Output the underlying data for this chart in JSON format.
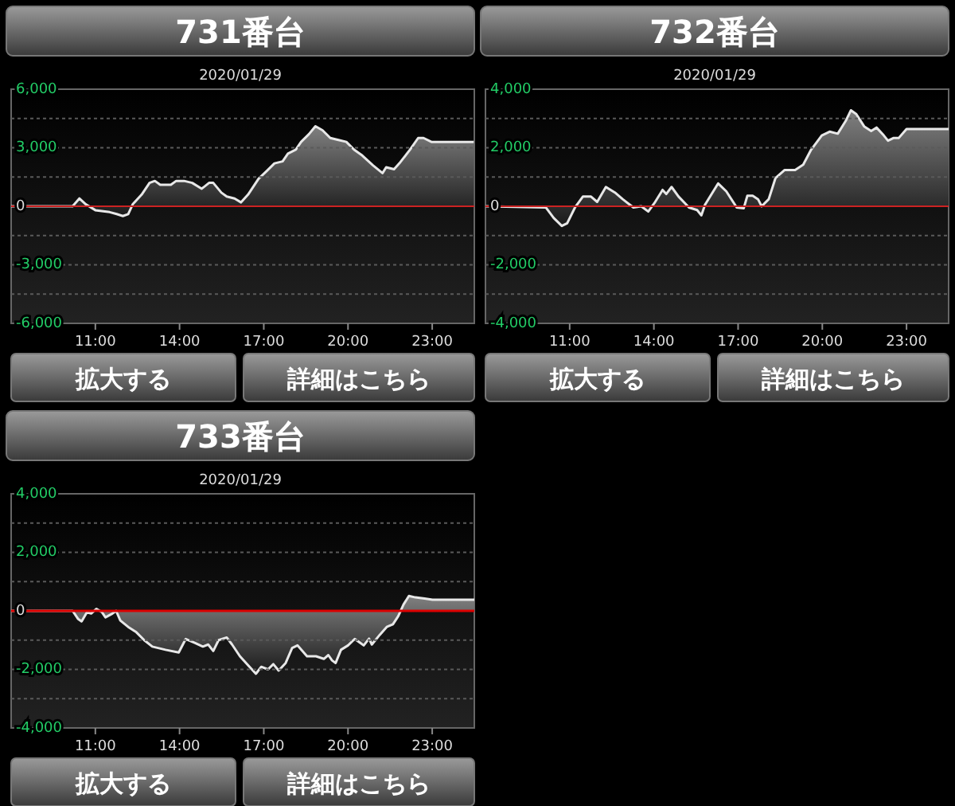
{
  "chart_data": [
    {
      "type": "area",
      "title": "731番台",
      "subtitle": "2020/01/29",
      "annotations": [
        "拡大する",
        "詳細はこちら"
      ],
      "grid": true,
      "xlim": [
        8,
        24.5
      ],
      "xticks": [
        {
          "value": 11,
          "label": "11:00"
        },
        {
          "value": 14,
          "label": "14:00"
        },
        {
          "value": 17,
          "label": "17:00"
        },
        {
          "value": 20,
          "label": "20:00"
        },
        {
          "value": 23,
          "label": "23:00"
        }
      ],
      "ylim": [
        -6000,
        6000
      ],
      "yticks": [
        {
          "value": 6000,
          "label": "6,000"
        },
        {
          "value": 4500,
          "label": null
        },
        {
          "value": 3000,
          "label": "3,000"
        },
        {
          "value": 1500,
          "label": null
        },
        {
          "value": 0,
          "label": "0"
        },
        {
          "value": -1500,
          "label": null
        },
        {
          "value": -3000,
          "label": "-3,000"
        },
        {
          "value": -4500,
          "label": null
        },
        {
          "value": -6000,
          "label": "-6,000"
        }
      ],
      "ref_lines": [
        {
          "axis": "y",
          "value": 0,
          "color": "#cc2222"
        }
      ],
      "series": [
        {
          "color": "#e8e8e8",
          "x": [
            8.0,
            10.19,
            10.43,
            10.66,
            11.0,
            11.51,
            11.76,
            11.98,
            12.17,
            12.33,
            12.65,
            12.93,
            13.12,
            13.31,
            13.69,
            13.88,
            14.16,
            14.45,
            14.79,
            15.05,
            15.2,
            15.49,
            15.68,
            15.96,
            16.19,
            16.44,
            16.81,
            17.1,
            17.38,
            17.67,
            17.86,
            18.14,
            18.33,
            18.61,
            18.84,
            19.09,
            19.37,
            19.66,
            19.94,
            20.22,
            20.51,
            20.89,
            21.23,
            21.36,
            21.64,
            21.83,
            22.21,
            22.5,
            22.69,
            22.97,
            24.48
          ],
          "values": [
            0,
            0,
            400,
            100,
            -200,
            -300,
            -400,
            -500,
            -400,
            100,
            600,
            1200,
            1300,
            1100,
            1100,
            1300,
            1300,
            1200,
            900,
            1200,
            1200,
            700,
            500,
            400,
            200,
            600,
            1400,
            1800,
            2200,
            2300,
            2700,
            2900,
            3300,
            3700,
            4100,
            3900,
            3500,
            3400,
            3300,
            2900,
            2600,
            2100,
            1700,
            2000,
            1900,
            2200,
            2900,
            3500,
            3500,
            3300,
            3300
          ]
        }
      ]
    },
    {
      "type": "area",
      "title": "732番台",
      "subtitle": "2020/01/29",
      "annotations": [
        "拡大する",
        "詳細はこちら"
      ],
      "grid": true,
      "xlim": [
        8,
        24.5
      ],
      "xticks": [
        {
          "value": 11,
          "label": "11:00"
        },
        {
          "value": 14,
          "label": "14:00"
        },
        {
          "value": 17,
          "label": "17:00"
        },
        {
          "value": 20,
          "label": "20:00"
        },
        {
          "value": 23,
          "label": "23:00"
        }
      ],
      "ylim": [
        -4000,
        4000
      ],
      "yticks": [
        {
          "value": 4000,
          "label": "4,000"
        },
        {
          "value": 3000,
          "label": null
        },
        {
          "value": 2000,
          "label": "2,000"
        },
        {
          "value": 1000,
          "label": null
        },
        {
          "value": 0,
          "label": "0"
        },
        {
          "value": -1000,
          "label": null
        },
        {
          "value": -2000,
          "label": "-2,000"
        },
        {
          "value": -3000,
          "label": null
        },
        {
          "value": -4000,
          "label": "-4,000"
        }
      ],
      "ref_lines": [
        {
          "axis": "y",
          "value": 0,
          "color": "#cc2222"
        }
      ],
      "series": [
        {
          "color": "#e8e8e8",
          "x": [
            8.01,
            10.15,
            10.43,
            10.72,
            10.91,
            11.19,
            11.47,
            11.76,
            11.98,
            12.29,
            12.61,
            12.89,
            13.27,
            13.55,
            13.8,
            14.02,
            14.31,
            14.44,
            14.63,
            14.88,
            15.25,
            15.54,
            15.69,
            15.82,
            16.29,
            16.58,
            16.95,
            17.2,
            17.33,
            17.52,
            17.71,
            17.84,
            18.09,
            18.33,
            18.66,
            19.03,
            19.32,
            19.6,
            19.98,
            20.26,
            20.55,
            20.83,
            21.02,
            21.21,
            21.49,
            21.74,
            21.93,
            22.19,
            22.34,
            22.53,
            22.72,
            23.0,
            24.5
          ],
          "values": [
            0,
            -40,
            -400,
            -670,
            -580,
            -40,
            330,
            330,
            150,
            660,
            470,
            240,
            -40,
            0,
            -180,
            110,
            560,
            420,
            660,
            330,
            -40,
            -130,
            -310,
            50,
            780,
            510,
            -40,
            -70,
            360,
            360,
            240,
            0,
            240,
            960,
            1240,
            1240,
            1420,
            1930,
            2420,
            2550,
            2480,
            2910,
            3280,
            3150,
            2730,
            2570,
            2690,
            2420,
            2240,
            2330,
            2330,
            2640,
            2640
          ]
        }
      ]
    },
    {
      "type": "area",
      "title": "733番台",
      "subtitle": "2020/01/29",
      "annotations": [
        "拡大する",
        "詳細はこちら"
      ],
      "grid": true,
      "xlim": [
        8,
        24.5
      ],
      "xticks": [
        {
          "value": 11,
          "label": "11:00"
        },
        {
          "value": 14,
          "label": "14:00"
        },
        {
          "value": 17,
          "label": "17:00"
        },
        {
          "value": 20,
          "label": "20:00"
        },
        {
          "value": 23,
          "label": "23:00"
        }
      ],
      "ylim": [
        -4000,
        4000
      ],
      "yticks": [
        {
          "value": 4000,
          "label": "4,000"
        },
        {
          "value": 3000,
          "label": null
        },
        {
          "value": 2000,
          "label": "2,000"
        },
        {
          "value": 1000,
          "label": null
        },
        {
          "value": 0,
          "label": "0"
        },
        {
          "value": -1000,
          "label": null
        },
        {
          "value": -2000,
          "label": "-2,000"
        },
        {
          "value": -3000,
          "label": null
        },
        {
          "value": -4000,
          "label": "-4,000"
        }
      ],
      "ref_lines": [
        {
          "axis": "y",
          "value": 0,
          "color": "#dd0000"
        }
      ],
      "series": [
        {
          "color": "#e8e8e8",
          "x": [
            8.0,
            10.19,
            10.38,
            10.51,
            10.7,
            10.85,
            11.04,
            11.23,
            11.36,
            11.61,
            11.74,
            11.89,
            12.17,
            12.46,
            12.74,
            13.03,
            13.5,
            13.97,
            14.22,
            14.54,
            14.83,
            15.02,
            15.2,
            15.39,
            15.68,
            15.87,
            16.15,
            16.44,
            16.72,
            16.91,
            17.15,
            17.34,
            17.53,
            17.78,
            18.01,
            18.2,
            18.54,
            18.86,
            19.14,
            19.3,
            19.43,
            19.56,
            19.75,
            20.0,
            20.24,
            20.43,
            20.56,
            20.75,
            20.85,
            21.13,
            21.38,
            21.6,
            21.79,
            21.98,
            22.17,
            22.4,
            22.73,
            23.01,
            24.5
          ],
          "values": [
            0,
            0,
            -270,
            -360,
            -50,
            -90,
            70,
            -40,
            -220,
            -90,
            0,
            -330,
            -550,
            -730,
            -1000,
            -1220,
            -1330,
            -1420,
            -960,
            -1090,
            -1220,
            -1150,
            -1370,
            -1000,
            -910,
            -1150,
            -1550,
            -1860,
            -2150,
            -1910,
            -2000,
            -1820,
            -2040,
            -1780,
            -1270,
            -1180,
            -1550,
            -1550,
            -1640,
            -1510,
            -1690,
            -1780,
            -1330,
            -1180,
            -960,
            -1090,
            -1180,
            -950,
            -1150,
            -820,
            -550,
            -460,
            -180,
            220,
            510,
            460,
            420,
            380,
            380
          ]
        }
      ]
    }
  ]
}
